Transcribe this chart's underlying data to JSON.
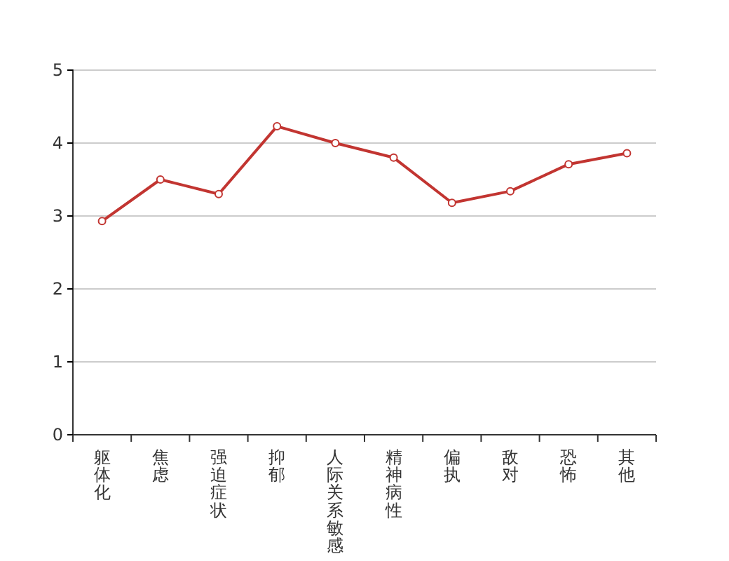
{
  "chart_data": {
    "type": "line",
    "categories": [
      "躯体化",
      "焦虑",
      "强迫症状",
      "抑郁",
      "人际关系敏感",
      "精神病性",
      "偏执",
      "敌对",
      "恐怖",
      "其他"
    ],
    "series": [
      {
        "color": "#c23531",
        "values": [
          2.93,
          3.5,
          3.3,
          4.23,
          4.0,
          3.8,
          3.18,
          3.34,
          3.71,
          3.86
        ]
      }
    ],
    "ylim": [
      0,
      5
    ],
    "yticks": [
      0,
      1,
      2,
      3,
      4,
      5
    ],
    "grid": "y",
    "marker": "circle",
    "line_style": "solid"
  }
}
